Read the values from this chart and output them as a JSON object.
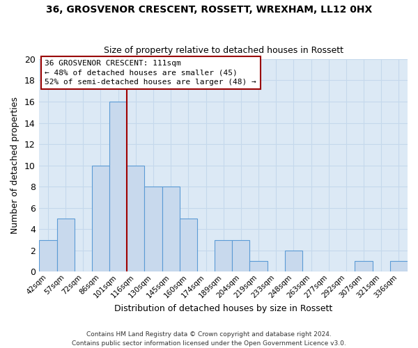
{
  "title": "36, GROSVENOR CRESCENT, ROSSETT, WREXHAM, LL12 0HX",
  "subtitle": "Size of property relative to detached houses in Rossett",
  "xlabel": "Distribution of detached houses by size in Rossett",
  "ylabel": "Number of detached properties",
  "bin_labels": [
    "42sqm",
    "57sqm",
    "72sqm",
    "86sqm",
    "101sqm",
    "116sqm",
    "130sqm",
    "145sqm",
    "160sqm",
    "174sqm",
    "189sqm",
    "204sqm",
    "219sqm",
    "233sqm",
    "248sqm",
    "263sqm",
    "277sqm",
    "292sqm",
    "307sqm",
    "321sqm",
    "336sqm"
  ],
  "bar_heights": [
    3,
    5,
    0,
    10,
    16,
    10,
    8,
    8,
    5,
    0,
    3,
    3,
    1,
    0,
    2,
    0,
    0,
    0,
    1,
    0,
    1
  ],
  "bar_color": "#c8d9ed",
  "bar_edge_color": "#5b9bd5",
  "grid_color": "#c5d8ec",
  "red_line_x": 4.5,
  "ylim": [
    0,
    20
  ],
  "yticks": [
    0,
    2,
    4,
    6,
    8,
    10,
    12,
    14,
    16,
    18,
    20
  ],
  "annotation_line1": "36 GROSVENOR CRESCENT: 111sqm",
  "annotation_line2": "← 48% of detached houses are smaller (45)",
  "annotation_line3": "52% of semi-detached houses are larger (48) →",
  "footer1": "Contains HM Land Registry data © Crown copyright and database right 2024.",
  "footer2": "Contains public sector information licensed under the Open Government Licence v3.0.",
  "fig_bg_color": "#ffffff",
  "plot_bg_color": "#dce9f5"
}
